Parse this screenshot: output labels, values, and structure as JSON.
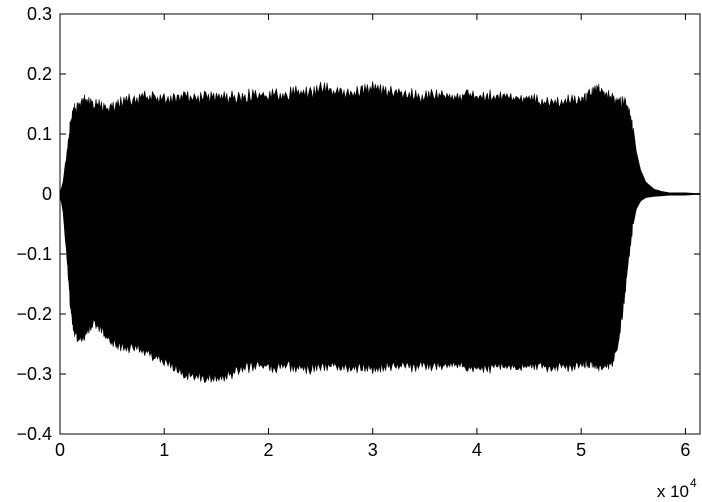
{
  "chart_data": {
    "type": "area",
    "title": "",
    "xlabel": "",
    "ylabel": "",
    "x_multiplier_label": "x 10",
    "x_multiplier_exponent": "4",
    "xlim": [
      0,
      61400
    ],
    "ylim": [
      -0.4,
      0.3
    ],
    "grid": false,
    "x_ticks": [
      0,
      10000,
      20000,
      30000,
      40000,
      50000,
      60000
    ],
    "x_tick_labels": [
      "0",
      "1",
      "2",
      "3",
      "4",
      "5",
      "6"
    ],
    "y_ticks": [
      -0.4,
      -0.3,
      -0.2,
      -0.1,
      0,
      0.1,
      0.2,
      0.3
    ],
    "y_tick_labels": [
      "−0.4",
      "−0.3",
      "−0.2",
      "−0.1",
      "0",
      "0.1",
      "0.2",
      "0.3"
    ],
    "fill_color": "#000000",
    "series": [
      {
        "x": [
          0,
          300,
          700,
          1000,
          1300,
          1700,
          2100,
          2600,
          3300,
          3900,
          4500,
          5300,
          6000,
          7000,
          8000,
          9000,
          10000,
          11000,
          12000,
          13000,
          14000,
          15000,
          16000,
          17000,
          18000,
          19000,
          20000,
          21000,
          22000,
          23000,
          24000,
          25000,
          26000,
          27000,
          28000,
          29000,
          30000,
          31000,
          32000,
          33000,
          34000,
          35000,
          36000,
          37000,
          38000,
          39000,
          40000,
          41000,
          42000,
          43000,
          44000,
          45000,
          46000,
          47000,
          48000,
          49000,
          50000,
          50500,
          51000,
          51500,
          52000,
          52500,
          53000,
          53500,
          54000,
          54500,
          55000,
          55300,
          55700,
          56200,
          57000,
          57800,
          58500,
          59200,
          60000,
          60800,
          61400
        ],
        "upper": [
          0.002,
          0.02,
          0.08,
          0.12,
          0.145,
          0.15,
          0.158,
          0.162,
          0.158,
          0.155,
          0.148,
          0.152,
          0.16,
          0.164,
          0.168,
          0.166,
          0.162,
          0.165,
          0.167,
          0.164,
          0.166,
          0.168,
          0.166,
          0.168,
          0.17,
          0.172,
          0.168,
          0.172,
          0.174,
          0.176,
          0.172,
          0.184,
          0.178,
          0.176,
          0.172,
          0.18,
          0.182,
          0.176,
          0.174,
          0.176,
          0.17,
          0.168,
          0.172,
          0.174,
          0.168,
          0.17,
          0.166,
          0.168,
          0.17,
          0.166,
          0.162,
          0.168,
          0.16,
          0.158,
          0.162,
          0.16,
          0.164,
          0.17,
          0.176,
          0.18,
          0.174,
          0.17,
          0.165,
          0.162,
          0.16,
          0.15,
          0.11,
          0.07,
          0.04,
          0.02,
          0.008,
          0.004,
          0.002,
          0.002,
          0.002,
          0.001,
          0.001
        ],
        "lower": [
          -0.002,
          -0.03,
          -0.12,
          -0.19,
          -0.23,
          -0.245,
          -0.245,
          -0.235,
          -0.222,
          -0.23,
          -0.245,
          -0.255,
          -0.26,
          -0.262,
          -0.265,
          -0.275,
          -0.282,
          -0.295,
          -0.305,
          -0.308,
          -0.31,
          -0.312,
          -0.308,
          -0.3,
          -0.295,
          -0.29,
          -0.292,
          -0.295,
          -0.292,
          -0.294,
          -0.296,
          -0.292,
          -0.29,
          -0.294,
          -0.296,
          -0.294,
          -0.295,
          -0.292,
          -0.29,
          -0.292,
          -0.294,
          -0.29,
          -0.292,
          -0.294,
          -0.29,
          -0.292,
          -0.294,
          -0.296,
          -0.292,
          -0.29,
          -0.294,
          -0.292,
          -0.29,
          -0.296,
          -0.294,
          -0.292,
          -0.29,
          -0.29,
          -0.288,
          -0.29,
          -0.292,
          -0.29,
          -0.285,
          -0.26,
          -0.2,
          -0.12,
          -0.05,
          -0.025,
          -0.012,
          -0.006,
          -0.004,
          -0.003,
          -0.002,
          -0.002,
          -0.002,
          -0.001,
          -0.001
        ]
      }
    ]
  }
}
